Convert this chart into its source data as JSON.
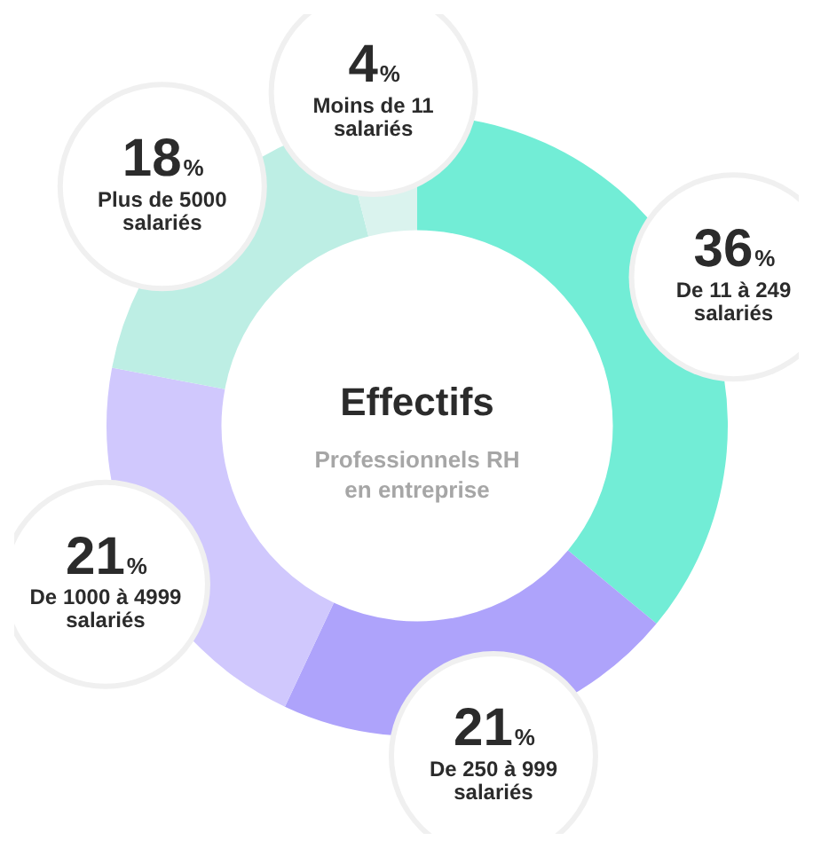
{
  "chart_data": {
    "type": "donut",
    "title": "Effectifs",
    "subtitle": "Professionnels RH en entreprise",
    "categories": [
      "De 11 à 249 salariés",
      "De 250 à 999 salariés",
      "De 1000 à 4999 salariés",
      "Plus de 5000 salariés",
      "Moins de 11 salariés"
    ],
    "values": [
      36,
      21,
      21,
      18,
      4
    ],
    "value_labels": [
      "36%",
      "21%",
      "21%",
      "18%",
      "4%"
    ],
    "colors": [
      "#72edd6",
      "#aea3fb",
      "#d0c8fd",
      "#bdeee4",
      "#daf3ee"
    ]
  }
}
